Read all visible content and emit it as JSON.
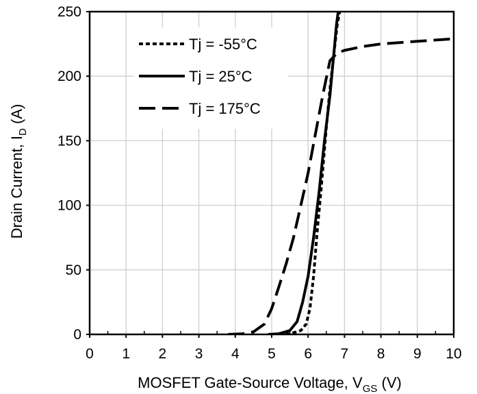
{
  "chart_data": {
    "type": "line",
    "xlabel": {
      "main": "MOSFET Gate-Source Voltage, V",
      "sub": "GS",
      "unit": " (V)"
    },
    "ylabel": {
      "main": "Drain Current, I",
      "sub": "D",
      "unit": " (A)"
    },
    "xlim": [
      0,
      10
    ],
    "ylim": [
      0,
      250
    ],
    "xticks": [
      0,
      1,
      2,
      3,
      4,
      5,
      6,
      7,
      8,
      9,
      10
    ],
    "yticks": [
      0,
      50,
      100,
      150,
      200,
      250
    ],
    "grid": true,
    "legend_position": "top-left",
    "series": [
      {
        "name": "Tj = -55°C",
        "style": "dotted",
        "color": "#000000",
        "x": [
          5.2,
          5.5,
          5.8,
          5.95,
          6.05,
          6.15,
          6.25,
          6.35,
          6.5,
          6.6,
          6.7,
          6.8,
          6.9
        ],
        "y": [
          0,
          0.5,
          3,
          8,
          20,
          45,
          80,
          110,
          160,
          190,
          215,
          240,
          255
        ]
      },
      {
        "name": "Tj = 25°C",
        "style": "solid",
        "color": "#000000",
        "x": [
          4.9,
          5.2,
          5.5,
          5.7,
          5.85,
          6.0,
          6.15,
          6.3,
          6.45,
          6.6,
          6.7,
          6.78,
          6.85
        ],
        "y": [
          0,
          0.5,
          3,
          10,
          25,
          45,
          75,
          110,
          150,
          185,
          215,
          240,
          255
        ]
      },
      {
        "name": "Tj = 175°C",
        "style": "dashed",
        "color": "#000000",
        "x": [
          3.8,
          4.2,
          4.5,
          4.8,
          5.0,
          5.2,
          5.4,
          5.6,
          5.8,
          6.0,
          6.2,
          6.4,
          6.6,
          6.8,
          7.0,
          7.5,
          8.0,
          9.0,
          10.0
        ],
        "y": [
          0,
          0.5,
          2,
          8,
          20,
          37,
          55,
          75,
          100,
          125,
          155,
          185,
          212,
          218,
          220,
          223,
          225,
          227,
          229
        ]
      }
    ]
  }
}
